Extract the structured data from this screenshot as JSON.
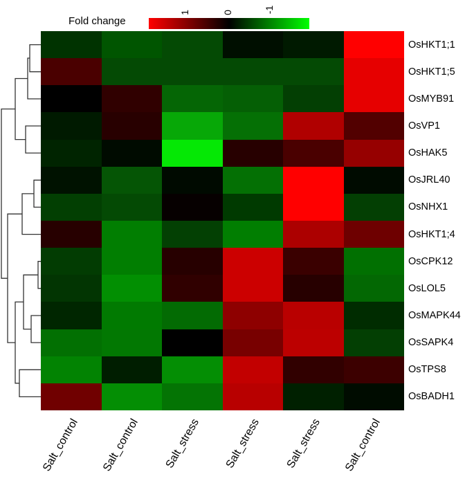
{
  "chart_data": {
    "type": "heatmap",
    "title": "",
    "legend": {
      "title": "Fold change",
      "ticks": [
        "1",
        "0",
        "-1"
      ],
      "colors": {
        "high": "#ff0000",
        "mid": "#000000",
        "low": "#00ff00"
      }
    },
    "columns": [
      "Salt_control",
      "Salt_control",
      "Salt_stress",
      "Salt_stress",
      "Salt_stress",
      "Salt_control"
    ],
    "rows": [
      "OsHKT1;1",
      "OsHKT1;5",
      "OsMYB91",
      "OsVP1",
      "OsHAK5",
      "OsJRL40",
      "OsNHX1",
      "OsHKT1;4",
      "OsCPK12",
      "OsLOL5",
      "OsMAPK44",
      "OsSAPK4",
      "OsTPS8",
      "OsBADH1"
    ],
    "values": [
      [
        -0.2,
        -0.35,
        -0.3,
        -0.05,
        -0.1,
        1.0
      ],
      [
        0.3,
        -0.3,
        -0.3,
        -0.3,
        -0.3,
        0.9
      ],
      [
        0.0,
        0.2,
        -0.4,
        -0.4,
        -0.25,
        0.9
      ],
      [
        -0.1,
        0.15,
        -0.65,
        -0.45,
        0.7,
        0.35
      ],
      [
        -0.12,
        -0.05,
        -0.95,
        0.15,
        0.3,
        0.6
      ],
      [
        -0.05,
        -0.35,
        -0.05,
        -0.45,
        1.0,
        -0.03
      ],
      [
        -0.25,
        -0.3,
        0.03,
        -0.25,
        1.0,
        -0.28
      ],
      [
        0.15,
        -0.5,
        -0.27,
        -0.5,
        0.67,
        0.45
      ],
      [
        -0.25,
        -0.5,
        0.15,
        0.8,
        0.23,
        -0.45
      ],
      [
        -0.22,
        -0.55,
        0.2,
        0.8,
        0.15,
        -0.4
      ],
      [
        -0.13,
        -0.47,
        -0.4,
        0.55,
        0.72,
        -0.17
      ],
      [
        -0.44,
        -0.47,
        0.0,
        0.47,
        0.74,
        -0.28
      ],
      [
        -0.5,
        -0.12,
        -0.54,
        0.75,
        0.2,
        0.24
      ],
      [
        0.44,
        -0.54,
        -0.44,
        0.72,
        -0.12,
        -0.05
      ]
    ],
    "colors": [
      [
        "#003300",
        "#005500",
        "#044a04",
        "#000f00",
        "#001a00",
        "#ff0000"
      ],
      [
        "#4a0000",
        "#044a04",
        "#044a04",
        "#044a04",
        "#044a04",
        "#e60000"
      ],
      [
        "#000000",
        "#300000",
        "#056605",
        "#055f05",
        "#033f03",
        "#e60000"
      ],
      [
        "#001a00",
        "#280000",
        "#07a807",
        "#057005",
        "#b00000",
        "#520000"
      ],
      [
        "#002400",
        "#000b00",
        "#05e805",
        "#270000",
        "#4a0000",
        "#960000"
      ],
      [
        "#001200",
        "#055505",
        "#000a00",
        "#047004",
        "#ff0000",
        "#000b00"
      ],
      [
        "#023f02",
        "#044a04",
        "#060000",
        "#003a00",
        "#ff0000",
        "#033f03"
      ],
      [
        "#270000",
        "#017e01",
        "#034003",
        "#017e01",
        "#ac0000",
        "#6e0000"
      ],
      [
        "#023c02",
        "#017e01",
        "#270000",
        "#cc0000",
        "#3a0000",
        "#017001"
      ],
      [
        "#023502",
        "#028f02",
        "#300000",
        "#cc0000",
        "#270000",
        "#036803"
      ],
      [
        "#002600",
        "#017a01",
        "#036b03",
        "#8e0000",
        "#b90000",
        "#002c00"
      ],
      [
        "#027002",
        "#027802",
        "#000000",
        "#780000",
        "#bc0000",
        "#033f03"
      ],
      [
        "#028302",
        "#001e00",
        "#048e04",
        "#c20000",
        "#310000",
        "#3c0000"
      ],
      [
        "#700000",
        "#048e04",
        "#047404",
        "#b80000",
        "#002000",
        "#000c00"
      ]
    ]
  }
}
